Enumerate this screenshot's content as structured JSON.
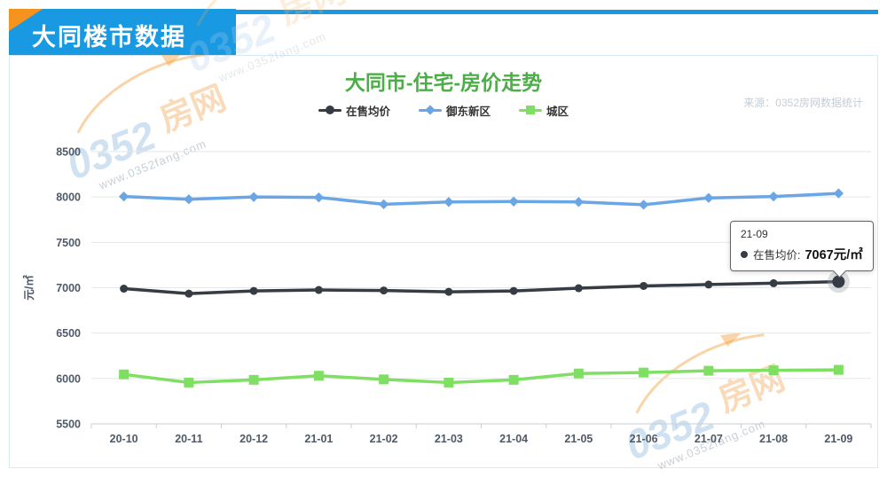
{
  "header": {
    "title": "大同楼市数据"
  },
  "source_note": "来源：0352房网数据统计",
  "watermark": {
    "brand_number": "0352",
    "brand_suffix": "房网",
    "url": "www.0352fang.com"
  },
  "tooltip": {
    "category": "21-09",
    "series": "在售均价",
    "label": "在售均价:",
    "value_text": "7067元/㎡"
  },
  "chart_data": {
    "type": "line",
    "title": "大同市-住宅-房价走势",
    "ylabel": "元/㎡",
    "ylim": [
      5500,
      8500
    ],
    "ytick_step": 500,
    "grid": true,
    "legend_position": "top",
    "categories": [
      "20-10",
      "20-11",
      "20-12",
      "21-01",
      "21-02",
      "21-03",
      "21-04",
      "21-05",
      "21-06",
      "21-07",
      "21-08",
      "21-09"
    ],
    "series": [
      {
        "name": "在售均价",
        "color": "#363c44",
        "marker": "circle",
        "values": [
          6990,
          6935,
          6965,
          6975,
          6970,
          6955,
          6965,
          6995,
          7020,
          7035,
          7050,
          7067
        ]
      },
      {
        "name": "御东新区",
        "color": "#6aa5e6",
        "marker": "diamond",
        "values": [
          8005,
          7975,
          8000,
          7995,
          7920,
          7945,
          7950,
          7945,
          7915,
          7990,
          8005,
          8040
        ]
      },
      {
        "name": "城区",
        "color": "#7fdf62",
        "marker": "square",
        "values": [
          6045,
          5955,
          5985,
          6030,
          5990,
          5955,
          5985,
          6055,
          6065,
          6085,
          6090,
          6095
        ]
      }
    ]
  },
  "colors": {
    "header_blue": "#1899e2",
    "corner_orange": "#f6921e",
    "title_green": "#4bae46",
    "panel_border": "#d8eaf6",
    "grid_line": "#e5e6e8",
    "axis_line": "#c8cdd3",
    "tick_label": "#4e5a66"
  }
}
